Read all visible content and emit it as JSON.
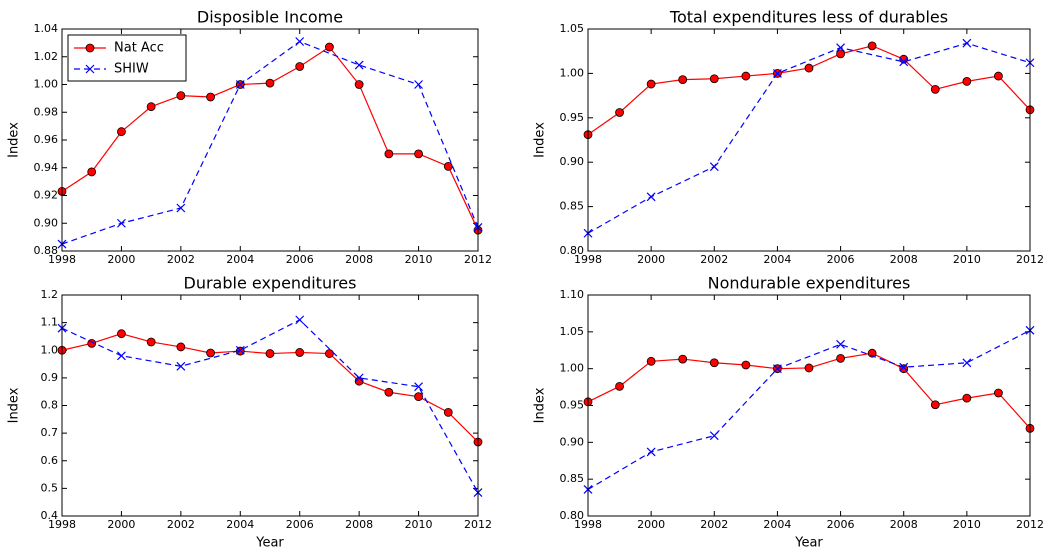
{
  "chart_data": [
    {
      "type": "line",
      "title": "Disposible Income",
      "ylabel": "Index",
      "xlim": [
        1998,
        2012
      ],
      "xticks": [
        1998,
        2000,
        2002,
        2004,
        2006,
        2008,
        2010,
        2012
      ],
      "ylim": [
        0.88,
        1.04
      ],
      "yticks": [
        0.88,
        {
          "value": 0.9,
          "label": "0.90"
        },
        0.92,
        0.94,
        0.96,
        0.98,
        {
          "value": 1,
          "label": "1.00"
        },
        1.02,
        1.04
      ],
      "legend": "upper left",
      "series": [
        {
          "name": "Nat Acc",
          "color": "#ff0000",
          "marker": "o",
          "linestyle": "solid",
          "x": [
            1998,
            1999,
            2000,
            2001,
            2002,
            2003,
            2004,
            2005,
            2006,
            2007,
            2008,
            2009,
            2010,
            2011,
            2012
          ],
          "values": [
            0.923,
            0.937,
            0.966,
            0.984,
            0.992,
            0.991,
            1.0,
            1.001,
            1.013,
            1.027,
            1.0,
            0.95,
            0.95,
            0.941,
            0.895
          ]
        },
        {
          "name": "SHIW",
          "color": "#0000ff",
          "marker": "x",
          "linestyle": "dashed",
          "x": [
            1998,
            2000,
            2002,
            2004,
            2006,
            2008,
            2010,
            2012
          ],
          "values": [
            0.885,
            0.9,
            0.911,
            1.0,
            1.031,
            1.014,
            1.0,
            0.897
          ]
        }
      ]
    },
    {
      "type": "line",
      "title": "Total expenditures less of durables",
      "ylabel": "Index",
      "xlim": [
        1998,
        2012
      ],
      "xticks": [
        1998,
        2000,
        2002,
        2004,
        2006,
        2008,
        2010,
        2012
      ],
      "ylim": [
        0.8,
        1.05
      ],
      "yticks": [
        {
          "value": 0.8,
          "label": "0.80"
        },
        0.85,
        {
          "value": 0.9,
          "label": "0.90"
        },
        0.95,
        {
          "value": 1,
          "label": "1.00"
        },
        1.05
      ],
      "series": [
        {
          "color": "#ff0000",
          "marker": "o",
          "linestyle": "solid",
          "x": [
            1998,
            1999,
            2000,
            2001,
            2002,
            2003,
            2004,
            2005,
            2006,
            2007,
            2008,
            2009,
            2010,
            2011,
            2012
          ],
          "values": [
            0.931,
            0.956,
            0.988,
            0.993,
            0.994,
            0.997,
            1.0,
            1.006,
            1.022,
            1.031,
            1.016,
            0.982,
            0.991,
            0.997,
            0.959
          ]
        },
        {
          "color": "#0000ff",
          "marker": "x",
          "linestyle": "dashed",
          "x": [
            1998,
            2000,
            2002,
            2004,
            2006,
            2008,
            2010,
            2012
          ],
          "values": [
            0.82,
            0.861,
            0.895,
            1.0,
            1.029,
            1.013,
            1.034,
            1.012
          ]
        }
      ]
    },
    {
      "type": "line",
      "title": "Durable expenditures",
      "ylabel": "Index",
      "xlabel": "Year",
      "xlim": [
        1998,
        2012
      ],
      "xticks": [
        1998,
        2000,
        2002,
        2004,
        2006,
        2008,
        2010,
        2012
      ],
      "ylim": [
        0.4,
        1.2
      ],
      "yticks": [
        0.4,
        0.5,
        0.6,
        0.7,
        0.8,
        0.9,
        {
          "value": 1,
          "label": "1.0"
        },
        1.1,
        1.2
      ],
      "series": [
        {
          "color": "#ff0000",
          "marker": "o",
          "linestyle": "solid",
          "x": [
            1998,
            1999,
            2000,
            2001,
            2002,
            2003,
            2004,
            2005,
            2006,
            2007,
            2008,
            2009,
            2010,
            2011,
            2012
          ],
          "values": [
            1.0,
            1.025,
            1.06,
            1.03,
            1.012,
            0.99,
            0.997,
            0.988,
            0.992,
            0.988,
            0.888,
            0.848,
            0.832,
            0.775,
            0.668
          ]
        },
        {
          "color": "#0000ff",
          "marker": "x",
          "linestyle": "dashed",
          "x": [
            1998,
            2000,
            2002,
            2004,
            2006,
            2008,
            2010,
            2012
          ],
          "values": [
            1.08,
            0.98,
            0.942,
            1.0,
            1.11,
            0.9,
            0.868,
            0.485
          ]
        }
      ]
    },
    {
      "type": "line",
      "title": "Nondurable expenditures",
      "ylabel": "Index",
      "xlabel": "Year",
      "xlim": [
        1998,
        2012
      ],
      "xticks": [
        1998,
        2000,
        2002,
        2004,
        2006,
        2008,
        2010,
        2012
      ],
      "ylim": [
        0.8,
        1.1
      ],
      "yticks": [
        {
          "value": 0.8,
          "label": "0.80"
        },
        0.85,
        {
          "value": 0.9,
          "label": "0.90"
        },
        0.95,
        {
          "value": 1,
          "label": "1.00"
        },
        1.05,
        {
          "value": 1.1,
          "label": "1.10"
        }
      ],
      "series": [
        {
          "color": "#ff0000",
          "marker": "o",
          "linestyle": "solid",
          "x": [
            1998,
            1999,
            2000,
            2001,
            2002,
            2003,
            2004,
            2005,
            2006,
            2007,
            2008,
            2009,
            2010,
            2011,
            2012
          ],
          "values": [
            0.955,
            0.976,
            1.01,
            1.013,
            1.008,
            1.005,
            1.0,
            1.001,
            1.014,
            1.021,
            1.0,
            0.951,
            0.96,
            0.967,
            0.919
          ]
        },
        {
          "color": "#0000ff",
          "marker": "x",
          "linestyle": "dashed",
          "x": [
            1998,
            2000,
            2002,
            2004,
            2006,
            2008,
            2010,
            2012
          ],
          "values": [
            0.836,
            0.887,
            0.909,
            1.0,
            1.033,
            1.002,
            1.008,
            1.052
          ]
        }
      ]
    }
  ]
}
